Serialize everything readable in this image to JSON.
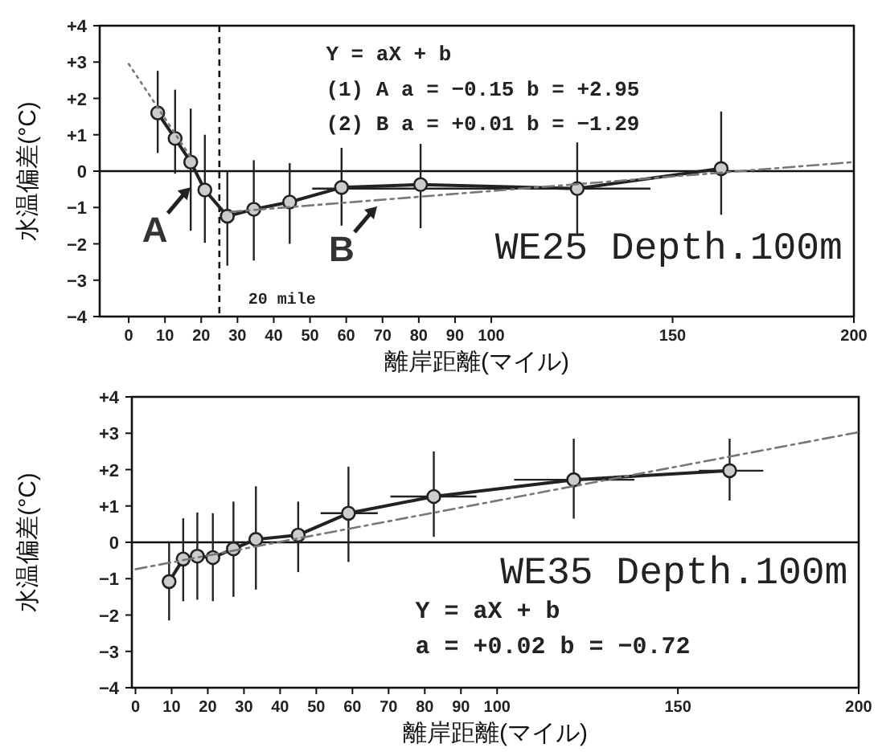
{
  "chart_data": [
    {
      "type": "line",
      "xlabel": "離岸距離(マイル)",
      "ylabel": "水温偏差(°C)",
      "xlim": [
        -8,
        200
      ],
      "ylim": [
        -4,
        4
      ],
      "xticks": [
        0,
        10,
        20,
        30,
        40,
        50,
        60,
        70,
        80,
        90,
        100,
        150,
        200
      ],
      "yticks": [
        {
          "value": 4,
          "label": "+4"
        },
        {
          "value": 3,
          "label": "+3"
        },
        {
          "value": 2,
          "label": "+2"
        },
        {
          "value": 1,
          "label": "+1"
        },
        0,
        {
          "value": -1,
          "label": "−1"
        },
        {
          "value": -2,
          "label": "−2"
        },
        {
          "value": -3,
          "label": "−3"
        },
        {
          "value": -4,
          "label": "−4"
        }
      ],
      "grid": false,
      "ref_lines": [
        {
          "axis": "y",
          "value": 0,
          "color": "#111111",
          "line_style": "solid"
        },
        {
          "axis": "x",
          "value": 25,
          "label": "20 mile",
          "color": "#111111",
          "line_style": "dashed"
        }
      ],
      "series": [
        {
          "color": "#222222",
          "marker": "circle",
          "line_style": "solid",
          "x": [
            8,
            12.8,
            17.1,
            21,
            27.2,
            34.5,
            44.4,
            58.7,
            80.5,
            123.7,
            163.4
          ],
          "values": [
            1.6,
            0.9,
            0.25,
            -0.52,
            -1.24,
            -1.05,
            -0.85,
            -0.45,
            -0.37,
            -0.48,
            0.07
          ],
          "errors": [
            [
              0.5,
              2.76
            ],
            [
              -0.07,
              2.24
            ],
            [
              -1.64,
              1.72
            ],
            [
              -1.97,
              1.0
            ],
            [
              -2.6,
              0.0
            ],
            [
              -2.46,
              0.3
            ],
            [
              -2.0,
              0.22
            ],
            [
              -1.5,
              0.64
            ],
            [
              -1.57,
              0.75
            ],
            [
              -1.72,
              0.79
            ],
            [
              -1.2,
              1.64
            ]
          ],
          "xerrors": [
            null,
            null,
            null,
            null,
            null,
            null,
            null,
            null,
            null,
            [
              50.6,
              143.9
            ],
            null
          ]
        },
        {
          "color": "#777777",
          "marker": "none",
          "line_style": "dotted",
          "x": [
            0,
            17
          ],
          "values": [
            2.95,
            0.4
          ]
        },
        {
          "color": "#777777",
          "marker": "none",
          "line_style": "dashed",
          "x": [
            28,
            200
          ],
          "values": [
            -1.12,
            0.25
          ]
        }
      ],
      "annotations": [
        "Y = aX + b",
        "(1)  A    a = −0.15    b = +2.95",
        "(2)  B    a = +0.01    b = −1.29",
        {
          "text": "A",
          "x": 17,
          "y": -0.45
        },
        {
          "text": "B",
          "x": 68.5,
          "y": -0.97
        },
        "WE25  Depth.100m"
      ]
    },
    {
      "type": "line",
      "xlabel": "離岸距離(マイル)",
      "ylabel": "水温偏差(°C)",
      "xlim": [
        -1,
        200
      ],
      "ylim": [
        -4,
        4
      ],
      "xticks": [
        0,
        10,
        20,
        30,
        40,
        50,
        60,
        70,
        80,
        90,
        100,
        150,
        200
      ],
      "yticks": [
        {
          "value": 4,
          "label": "+4"
        },
        {
          "value": 3,
          "label": "+3"
        },
        {
          "value": 2,
          "label": "+2"
        },
        {
          "value": 1,
          "label": "+1"
        },
        0,
        {
          "value": -1,
          "label": "−1"
        },
        {
          "value": -2,
          "label": "−2"
        },
        {
          "value": -3,
          "label": "−3"
        },
        {
          "value": -4,
          "label": "−4"
        }
      ],
      "grid": false,
      "ref_lines": [
        {
          "axis": "y",
          "value": 0,
          "color": "#111111",
          "line_style": "solid"
        }
      ],
      "series": [
        {
          "color": "#222222",
          "marker": "circle",
          "line_style": "solid",
          "x": [
            9.3,
            13.2,
            17.1,
            21.4,
            27.1,
            33.3,
            45,
            58.9,
            82.5,
            121.2,
            164.3
          ],
          "values": [
            -1.08,
            -0.46,
            -0.38,
            -0.42,
            -0.18,
            0.08,
            0.2,
            0.8,
            1.26,
            1.72,
            1.97
          ],
          "errors": [
            [
              -2.15,
              0
            ],
            [
              -1.62,
              0.66
            ],
            [
              -1.58,
              0.82
            ],
            [
              -1.62,
              0.8
            ],
            [
              -1.5,
              1.12
            ],
            [
              -1.3,
              1.54
            ],
            [
              -0.82,
              1.12
            ],
            [
              -0.54,
              2.08
            ],
            [
              0.15,
              2.5
            ],
            [
              0.65,
              2.85
            ],
            [
              1.15,
              2.85
            ]
          ],
          "xerrors": [
            null,
            null,
            null,
            null,
            null,
            null,
            null,
            [
              51.2,
              67
            ],
            [
              70.5,
              94.3
            ],
            [
              104.7,
              138
            ],
            [
              155.8,
              173.6
            ]
          ]
        },
        {
          "color": "#777777",
          "marker": "none",
          "line_style": "dashed",
          "x": [
            0,
            200
          ],
          "values": [
            -0.74,
            3.03
          ]
        }
      ],
      "annotations": [
        "Y = aX + b",
        "a = +0.02   b = −0.72",
        "WE35  Depth.100m"
      ]
    }
  ]
}
